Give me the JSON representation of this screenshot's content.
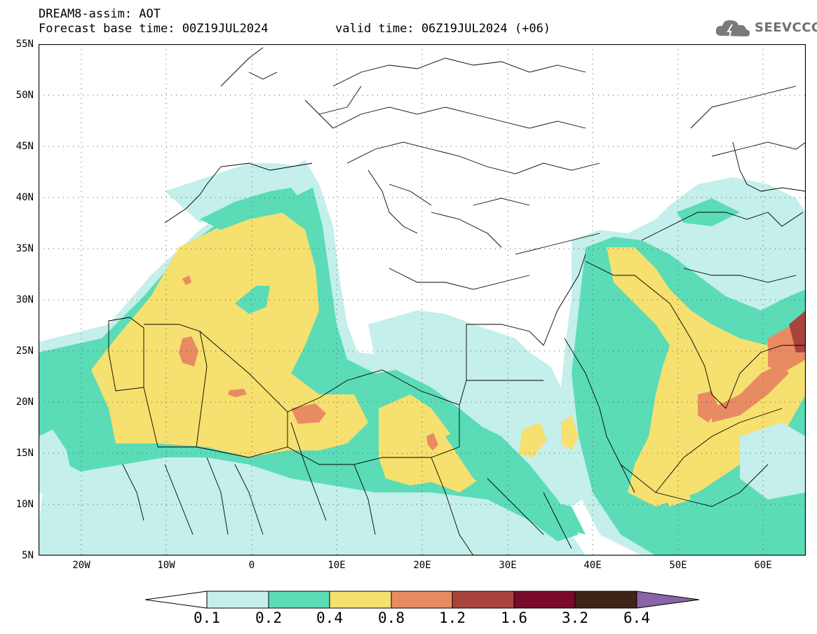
{
  "header": {
    "title": "DREAM8-assim: AOT",
    "base_time": "Forecast base time: 00Z19JUL2024",
    "valid_time": "valid time: 06Z19JUL2024 (+06)",
    "logo_text": "SEEVCCC"
  },
  "map": {
    "lon_range": [
      -25,
      65
    ],
    "lat_range": [
      5,
      55
    ],
    "lat_labels": [
      "55N",
      "50N",
      "45N",
      "40N",
      "35N",
      "30N",
      "25N",
      "20N",
      "15N",
      "10N",
      "5N"
    ],
    "lon_labels": [
      "20W",
      "10W",
      "0",
      "10E",
      "20E",
      "30E",
      "40E",
      "50E",
      "60E"
    ],
    "grid": "dotted",
    "land_color": "#ffffff",
    "border_color": "#000000"
  },
  "colorbar": {
    "labels": [
      "0.1",
      "0.2",
      "0.4",
      "0.8",
      "1.2",
      "1.6",
      "3.2",
      "6.4"
    ],
    "colors": [
      "#c4efea",
      "#5bdcb7",
      "#f6e06f",
      "#e98b62",
      "#a9443d",
      "#7a0a2c",
      "#3e2317",
      "#8a64a6"
    ]
  }
}
